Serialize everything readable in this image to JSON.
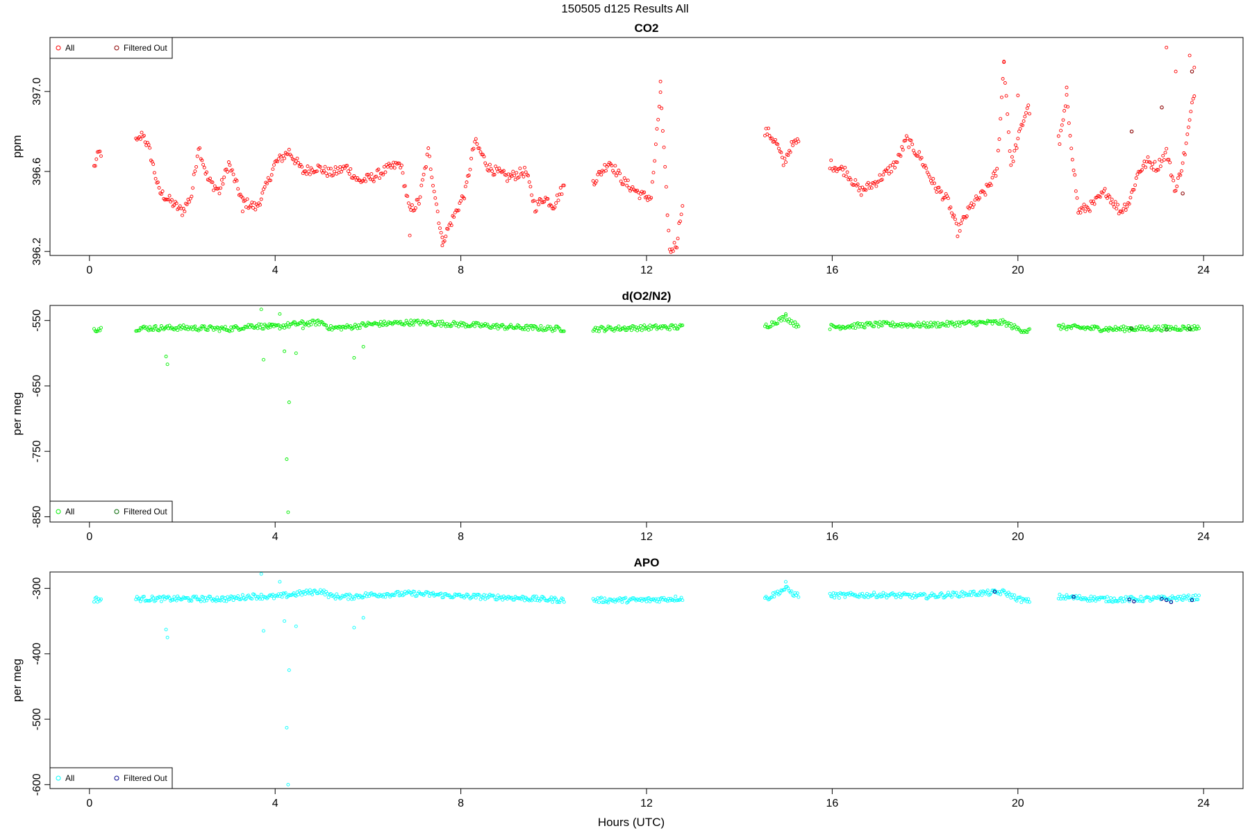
{
  "figure_title": "150505   d125   Results All",
  "xlabel": "Hours (UTC)",
  "colors": {
    "co2": "#ff0000",
    "co2_filtered": "#8b0000",
    "o2": "#00ee00",
    "o2_filtered": "#006400",
    "apo": "#00ffff",
    "apo_filtered": "#00008b"
  },
  "chart_data": [
    {
      "type": "scatter",
      "title": "CO2",
      "xlabel": "",
      "ylabel": "ppm",
      "xlim": [
        -0.85,
        24.85
      ],
      "ylim": [
        396.18,
        397.27
      ],
      "xticks": [
        0,
        4,
        8,
        12,
        16,
        20,
        24
      ],
      "yticks": [
        396.2,
        396.6,
        397.0
      ],
      "ytick_labels": [
        "396.2",
        "396.6",
        "397.0"
      ],
      "legend_position": "top-left",
      "legend": [
        "All",
        "Filtered Out"
      ],
      "grid": false,
      "series": [
        {
          "name": "All",
          "color": "#ff0000",
          "anchors": [
            [
              0.1,
              396.62
            ],
            [
              0.2,
              396.69
            ],
            [
              1.05,
              396.75
            ],
            [
              1.15,
              396.79
            ],
            [
              1.3,
              396.7
            ],
            [
              1.5,
              396.5
            ],
            [
              1.8,
              396.44
            ],
            [
              2.0,
              396.4
            ],
            [
              2.2,
              396.48
            ],
            [
              2.35,
              396.73
            ],
            [
              2.55,
              396.56
            ],
            [
              2.8,
              396.5
            ],
            [
              3.0,
              396.64
            ],
            [
              3.3,
              396.45
            ],
            [
              3.6,
              396.42
            ],
            [
              3.8,
              396.52
            ],
            [
              4.0,
              396.64
            ],
            [
              4.3,
              396.7
            ],
            [
              4.6,
              396.6
            ],
            [
              4.9,
              396.62
            ],
            [
              5.2,
              396.59
            ],
            [
              5.55,
              396.62
            ],
            [
              5.8,
              396.55
            ],
            [
              6.1,
              396.57
            ],
            [
              6.4,
              396.61
            ],
            [
              6.7,
              396.64
            ],
            [
              6.9,
              396.4
            ],
            [
              7.1,
              396.45
            ],
            [
              7.3,
              396.7
            ],
            [
              7.6,
              396.25
            ],
            [
              7.9,
              396.4
            ],
            [
              8.1,
              396.5
            ],
            [
              8.3,
              396.75
            ],
            [
              8.6,
              396.62
            ],
            [
              9.0,
              396.57
            ],
            [
              9.4,
              396.6
            ],
            [
              9.6,
              396.42
            ],
            [
              9.8,
              396.47
            ],
            [
              10.0,
              396.43
            ],
            [
              10.2,
              396.52
            ],
            [
              10.9,
              396.56
            ],
            [
              11.2,
              396.65
            ],
            [
              11.5,
              396.55
            ],
            [
              11.9,
              396.48
            ],
            [
              12.1,
              396.47
            ],
            [
              12.2,
              396.72
            ],
            [
              12.3,
              397.0
            ],
            [
              12.5,
              396.2
            ],
            [
              12.65,
              396.24
            ],
            [
              12.75,
              396.41
            ],
            [
              14.6,
              396.8
            ],
            [
              14.8,
              396.74
            ],
            [
              14.95,
              396.64
            ],
            [
              15.1,
              396.72
            ],
            [
              15.25,
              396.75
            ],
            [
              16.0,
              396.63
            ],
            [
              16.3,
              396.6
            ],
            [
              16.6,
              396.5
            ],
            [
              16.9,
              396.54
            ],
            [
              17.2,
              396.6
            ],
            [
              17.4,
              396.65
            ],
            [
              17.6,
              396.76
            ],
            [
              17.9,
              396.67
            ],
            [
              18.2,
              396.53
            ],
            [
              18.5,
              396.45
            ],
            [
              18.7,
              396.3
            ],
            [
              19.0,
              396.43
            ],
            [
              19.3,
              396.5
            ],
            [
              19.55,
              396.6
            ],
            [
              19.7,
              397.15
            ],
            [
              19.85,
              396.63
            ],
            [
              20.05,
              396.8
            ],
            [
              20.2,
              396.92
            ],
            [
              20.9,
              396.75
            ],
            [
              21.05,
              396.96
            ],
            [
              21.3,
              396.4
            ],
            [
              21.6,
              396.43
            ],
            [
              21.9,
              396.5
            ],
            [
              22.2,
              396.4
            ],
            [
              22.4,
              396.45
            ],
            [
              22.6,
              396.6
            ],
            [
              22.8,
              396.65
            ],
            [
              23.0,
              396.62
            ],
            [
              23.2,
              396.7
            ],
            [
              23.4,
              396.5
            ],
            [
              23.6,
              396.7
            ],
            [
              23.8,
              397.0
            ]
          ],
          "spikes": [
            [
              3.3,
              396.4
            ],
            [
              6.9,
              396.28
            ],
            [
              7.6,
              396.23
            ],
            [
              12.3,
              397.05
            ],
            [
              12.6,
              396.17
            ],
            [
              19.7,
              397.15
            ],
            [
              20.0,
              396.98
            ],
            [
              21.05,
              397.02
            ],
            [
              23.2,
              397.22
            ],
            [
              23.4,
              397.1
            ],
            [
              23.7,
              397.18
            ],
            [
              23.8,
              397.12
            ]
          ],
          "gaps": [
            [
              0.25,
              1.0
            ],
            [
              10.25,
              10.85
            ],
            [
              12.8,
              14.55
            ],
            [
              15.3,
              15.95
            ],
            [
              20.25,
              20.85
            ]
          ],
          "noise": 0.025
        },
        {
          "name": "Filtered Out",
          "color": "#8b0000",
          "points": [
            [
              22.45,
              396.8
            ],
            [
              23.1,
              396.92
            ],
            [
              23.75,
              397.1
            ],
            [
              23.55,
              396.49
            ]
          ]
        }
      ]
    },
    {
      "type": "scatter",
      "title": "d(O2/N2)",
      "xlabel": "",
      "ylabel": "per meg",
      "xlim": [
        -0.85,
        24.85
      ],
      "ylim": [
        -858,
        -527
      ],
      "xticks": [
        0,
        4,
        8,
        12,
        16,
        20,
        24
      ],
      "yticks": [
        -850,
        -750,
        -650,
        -550
      ],
      "ytick_labels": [
        "-850",
        "-750",
        "-650",
        "-550"
      ],
      "legend_position": "bottom-left",
      "legend": [
        "All",
        "Filtered Out"
      ],
      "grid": false,
      "series": [
        {
          "name": "All",
          "color": "#00ee00",
          "anchors": [
            [
              0.1,
              -563
            ],
            [
              0.2,
              -563
            ],
            [
              1.0,
              -562
            ],
            [
              2.0,
              -561
            ],
            [
              3.0,
              -563
            ],
            [
              3.5,
              -558
            ],
            [
              4.0,
              -560
            ],
            [
              4.5,
              -555
            ],
            [
              5.0,
              -553
            ],
            [
              5.2,
              -562
            ],
            [
              5.6,
              -560
            ],
            [
              6.0,
              -556
            ],
            [
              7.0,
              -553
            ],
            [
              8.0,
              -556
            ],
            [
              9.0,
              -560
            ],
            [
              10.2,
              -563
            ],
            [
              10.9,
              -563
            ],
            [
              12.0,
              -561
            ],
            [
              12.75,
              -560
            ],
            [
              14.6,
              -558
            ],
            [
              15.0,
              -545
            ],
            [
              15.2,
              -556
            ],
            [
              16.0,
              -560
            ],
            [
              17.0,
              -556
            ],
            [
              18.0,
              -557
            ],
            [
              19.0,
              -554
            ],
            [
              19.7,
              -553
            ],
            [
              20.0,
              -563
            ],
            [
              20.2,
              -566
            ],
            [
              20.9,
              -560
            ],
            [
              22.0,
              -563
            ],
            [
              23.0,
              -562
            ],
            [
              23.9,
              -561
            ]
          ],
          "spikes": [
            [
              1.65,
              -605
            ],
            [
              1.68,
              -617
            ],
            [
              3.7,
              -533
            ],
            [
              3.75,
              -610
            ],
            [
              4.1,
              -540
            ],
            [
              4.2,
              -597
            ],
            [
              4.3,
              -675
            ],
            [
              4.25,
              -762
            ],
            [
              4.28,
              -843
            ],
            [
              5.7,
              -607
            ],
            [
              5.9,
              -590
            ],
            [
              4.45,
              -600
            ],
            [
              3.9,
              -560
            ],
            [
              4.6,
              -562
            ],
            [
              15.0,
              -540
            ]
          ],
          "gaps": [
            [
              0.25,
              1.0
            ],
            [
              10.25,
              10.85
            ],
            [
              12.8,
              14.55
            ],
            [
              15.3,
              15.95
            ],
            [
              20.25,
              20.85
            ]
          ],
          "noise": 4
        },
        {
          "name": "Filtered Out",
          "color": "#006400",
          "points": [
            [
              22.45,
              -562
            ],
            [
              23.2,
              -564
            ],
            [
              23.7,
              -563
            ]
          ]
        }
      ]
    },
    {
      "type": "scatter",
      "title": "APO",
      "xlabel": "Hours (UTC)",
      "ylabel": "per meg",
      "xlim": [
        -0.85,
        24.85
      ],
      "ylim": [
        -606,
        -275
      ],
      "xticks": [
        0,
        4,
        8,
        12,
        16,
        20,
        24
      ],
      "yticks": [
        -600,
        -500,
        -400,
        -300
      ],
      "ytick_labels": [
        "-600",
        "-500",
        "-400",
        "-300"
      ],
      "legend_position": "bottom-left",
      "legend": [
        "All",
        "Filtered Out"
      ],
      "grid": false,
      "series": [
        {
          "name": "All",
          "color": "#00ffff",
          "anchors": [
            [
              0.1,
              -317
            ],
            [
              0.2,
              -317
            ],
            [
              1.0,
              -316
            ],
            [
              2.0,
              -316
            ],
            [
              3.0,
              -316
            ],
            [
              3.5,
              -312
            ],
            [
              4.0,
              -313
            ],
            [
              4.5,
              -308
            ],
            [
              5.0,
              -304
            ],
            [
              5.2,
              -312
            ],
            [
              5.6,
              -313
            ],
            [
              6.0,
              -310
            ],
            [
              7.0,
              -308
            ],
            [
              8.0,
              -312
            ],
            [
              9.0,
              -314
            ],
            [
              10.2,
              -318
            ],
            [
              10.9,
              -318
            ],
            [
              12.0,
              -318
            ],
            [
              12.75,
              -315
            ],
            [
              14.6,
              -315
            ],
            [
              15.0,
              -300
            ],
            [
              15.2,
              -310
            ],
            [
              16.0,
              -311
            ],
            [
              17.0,
              -310
            ],
            [
              18.0,
              -312
            ],
            [
              19.0,
              -308
            ],
            [
              19.7,
              -306
            ],
            [
              20.0,
              -316
            ],
            [
              20.2,
              -320
            ],
            [
              20.9,
              -313
            ],
            [
              22.0,
              -317
            ],
            [
              23.0,
              -316
            ],
            [
              23.9,
              -314
            ]
          ],
          "spikes": [
            [
              1.65,
              -363
            ],
            [
              1.68,
              -375
            ],
            [
              3.7,
              -278
            ],
            [
              3.75,
              -365
            ],
            [
              4.1,
              -290
            ],
            [
              4.2,
              -350
            ],
            [
              4.3,
              -425
            ],
            [
              4.25,
              -513
            ],
            [
              4.28,
              -600
            ],
            [
              5.7,
              -360
            ],
            [
              5.9,
              -345
            ],
            [
              4.45,
              -358
            ],
            [
              15.0,
              -290
            ]
          ],
          "gaps": [
            [
              0.25,
              1.0
            ],
            [
              10.25,
              10.85
            ],
            [
              12.8,
              14.55
            ],
            [
              15.3,
              15.95
            ],
            [
              20.25,
              20.85
            ]
          ],
          "noise": 4
        },
        {
          "name": "Filtered Out",
          "color": "#00008b",
          "points": [
            [
              19.5,
              -305
            ],
            [
              21.2,
              -313
            ],
            [
              22.4,
              -317
            ],
            [
              22.5,
              -320
            ],
            [
              23.1,
              -316
            ],
            [
              23.2,
              -318
            ],
            [
              23.3,
              -321
            ],
            [
              23.75,
              -318
            ]
          ]
        }
      ]
    }
  ]
}
